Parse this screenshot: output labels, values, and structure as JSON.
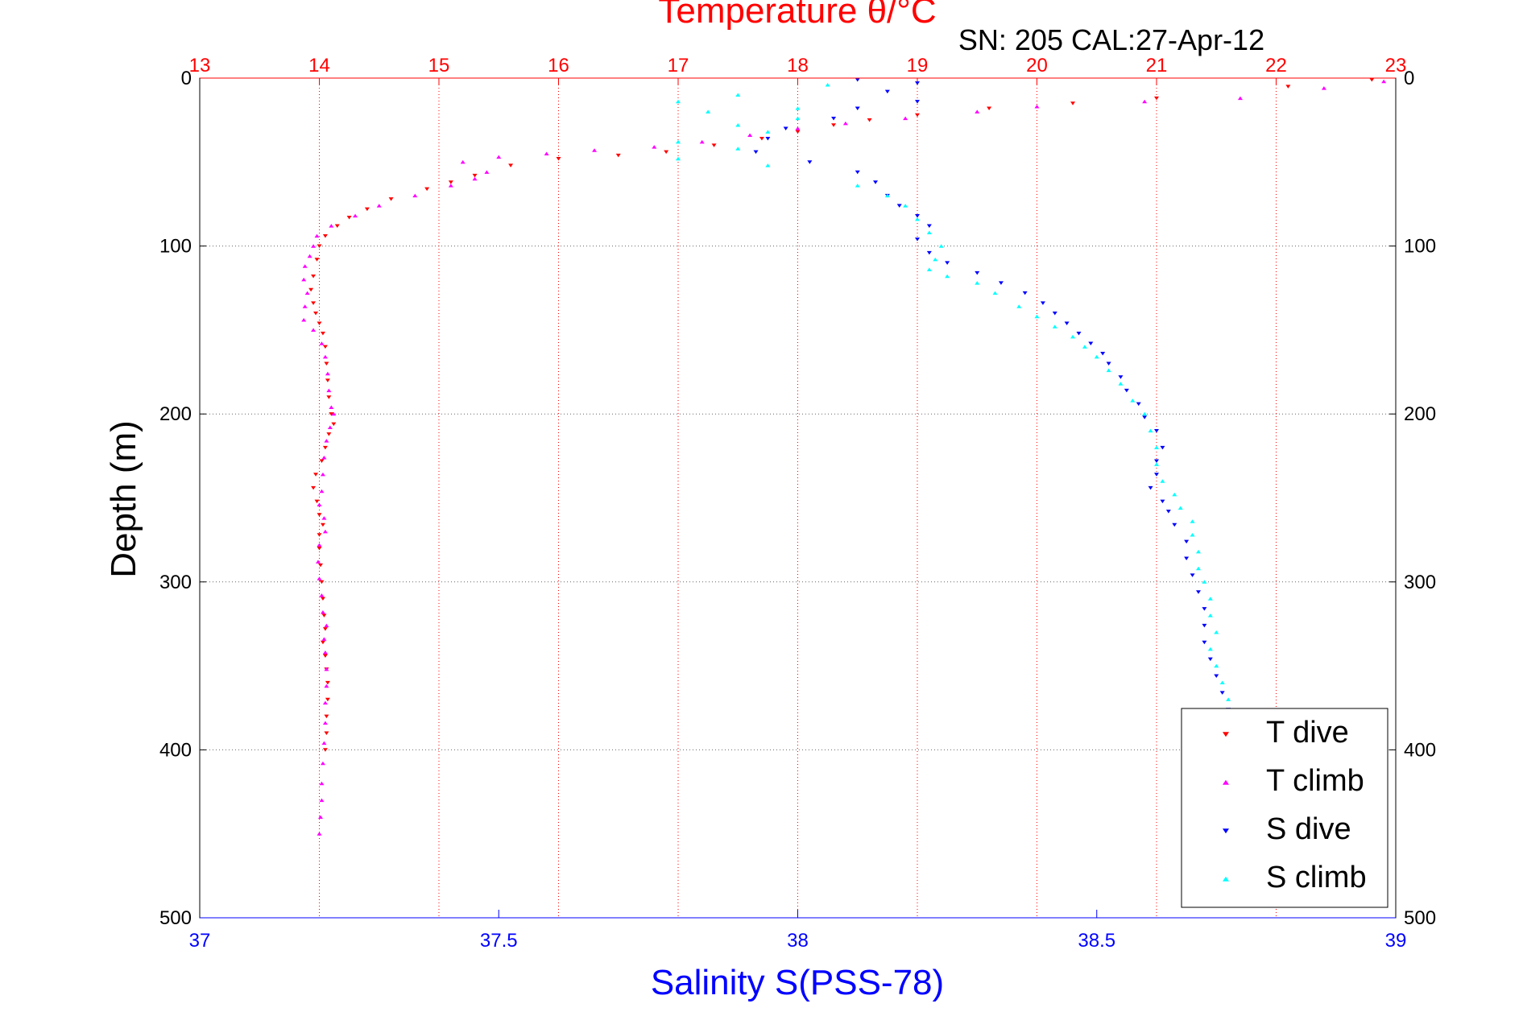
{
  "chart_data": {
    "type": "scatter",
    "title": "Temperature θ/°C",
    "subtitle": "SN: 205  CAL:27-Apr-12",
    "ylabel": "Depth (m)",
    "xlabel": "Salinity S(PSS-78)",
    "ylim": [
      0,
      500
    ],
    "y_reversed": true,
    "y_ticks": [
      0,
      100,
      200,
      300,
      400,
      500
    ],
    "x_top": {
      "label": "Temperature θ/°C",
      "lim": [
        13,
        23
      ],
      "ticks": [
        13,
        14,
        15,
        16,
        17,
        18,
        19,
        20,
        21,
        22,
        23
      ],
      "color": "#ff0000"
    },
    "x_bottom": {
      "label": "Salinity S(PSS-78)",
      "lim": [
        37,
        39
      ],
      "ticks": [
        "37",
        "37.5",
        "38",
        "38.5",
        "39"
      ],
      "color": "#0000ff"
    },
    "grid": true,
    "legend": "bottom-right",
    "series": [
      {
        "name": "T dive",
        "axis": "top",
        "marker": "triangle-down",
        "color": "#ff0000",
        "points": [
          [
            22.8,
            1
          ],
          [
            22.1,
            5
          ],
          [
            21.0,
            12
          ],
          [
            20.3,
            15
          ],
          [
            19.6,
            18
          ],
          [
            19.0,
            22
          ],
          [
            18.6,
            25
          ],
          [
            18.3,
            28
          ],
          [
            18.0,
            32
          ],
          [
            17.7,
            36
          ],
          [
            17.3,
            40
          ],
          [
            16.9,
            44
          ],
          [
            16.5,
            46
          ],
          [
            16.0,
            48
          ],
          [
            15.6,
            52
          ],
          [
            15.3,
            58
          ],
          [
            15.1,
            62
          ],
          [
            14.9,
            66
          ],
          [
            14.6,
            72
          ],
          [
            14.4,
            78
          ],
          [
            14.25,
            83
          ],
          [
            14.15,
            88
          ],
          [
            14.05,
            94
          ],
          [
            14.0,
            100
          ],
          [
            13.98,
            108
          ],
          [
            13.95,
            118
          ],
          [
            13.93,
            126
          ],
          [
            13.95,
            134
          ],
          [
            13.97,
            140
          ],
          [
            14.0,
            146
          ],
          [
            14.03,
            152
          ],
          [
            14.05,
            160
          ],
          [
            14.06,
            170
          ],
          [
            14.07,
            180
          ],
          [
            14.08,
            190
          ],
          [
            14.1,
            200
          ],
          [
            14.12,
            206
          ],
          [
            14.08,
            212
          ],
          [
            14.05,
            220
          ],
          [
            14.02,
            228
          ],
          [
            13.97,
            236
          ],
          [
            13.95,
            244
          ],
          [
            13.98,
            252
          ],
          [
            14.0,
            260
          ],
          [
            14.03,
            266
          ],
          [
            14.0,
            272
          ],
          [
            14.0,
            280
          ],
          [
            14.01,
            290
          ],
          [
            14.02,
            300
          ],
          [
            14.03,
            310
          ],
          [
            14.04,
            320
          ],
          [
            14.05,
            328
          ],
          [
            14.03,
            336
          ],
          [
            14.05,
            344
          ],
          [
            14.06,
            352
          ],
          [
            14.07,
            360
          ],
          [
            14.07,
            370
          ],
          [
            14.06,
            380
          ],
          [
            14.06,
            390
          ],
          [
            14.05,
            400
          ]
        ]
      },
      {
        "name": "T climb",
        "axis": "top",
        "marker": "triangle-up",
        "color": "#ff00ff",
        "points": [
          [
            22.9,
            2
          ],
          [
            22.4,
            6
          ],
          [
            21.7,
            12
          ],
          [
            20.9,
            14
          ],
          [
            20.0,
            17
          ],
          [
            19.5,
            20
          ],
          [
            18.9,
            24
          ],
          [
            18.4,
            27
          ],
          [
            18.0,
            30
          ],
          [
            17.6,
            34
          ],
          [
            17.2,
            38
          ],
          [
            16.8,
            41
          ],
          [
            16.3,
            43
          ],
          [
            15.9,
            45
          ],
          [
            15.5,
            47
          ],
          [
            15.2,
            50
          ],
          [
            15.4,
            56
          ],
          [
            15.3,
            60
          ],
          [
            15.1,
            64
          ],
          [
            14.8,
            70
          ],
          [
            14.5,
            76
          ],
          [
            14.3,
            82
          ],
          [
            14.1,
            88
          ],
          [
            13.98,
            94
          ],
          [
            13.95,
            100
          ],
          [
            13.92,
            106
          ],
          [
            13.88,
            112
          ],
          [
            13.87,
            120
          ],
          [
            13.9,
            128
          ],
          [
            13.88,
            136
          ],
          [
            13.87,
            144
          ],
          [
            13.95,
            150
          ],
          [
            14.02,
            158
          ],
          [
            14.05,
            166
          ],
          [
            14.07,
            176
          ],
          [
            14.08,
            186
          ],
          [
            14.1,
            196
          ],
          [
            14.12,
            200
          ],
          [
            14.09,
            208
          ],
          [
            14.06,
            216
          ],
          [
            14.04,
            226
          ],
          [
            14.03,
            236
          ],
          [
            14.02,
            246
          ],
          [
            14.0,
            254
          ],
          [
            14.04,
            262
          ],
          [
            14.05,
            270
          ],
          [
            14.0,
            278
          ],
          [
            13.99,
            288
          ],
          [
            14.0,
            298
          ],
          [
            14.02,
            308
          ],
          [
            14.03,
            318
          ],
          [
            14.06,
            326
          ],
          [
            14.04,
            334
          ],
          [
            14.05,
            342
          ],
          [
            14.06,
            352
          ],
          [
            14.06,
            362
          ],
          [
            14.05,
            372
          ],
          [
            14.05,
            384
          ],
          [
            14.04,
            396
          ],
          [
            14.03,
            408
          ],
          [
            14.02,
            420
          ],
          [
            14.02,
            430
          ],
          [
            14.01,
            440
          ],
          [
            14.0,
            450
          ]
        ]
      },
      {
        "name": "S dive",
        "axis": "bottom",
        "marker": "triangle-down",
        "color": "#0000ff",
        "points": [
          [
            38.1,
            1
          ],
          [
            38.2,
            3
          ],
          [
            38.15,
            8
          ],
          [
            38.2,
            14
          ],
          [
            38.1,
            18
          ],
          [
            38.06,
            24
          ],
          [
            37.98,
            30
          ],
          [
            37.95,
            36
          ],
          [
            37.93,
            44
          ],
          [
            38.02,
            50
          ],
          [
            38.1,
            56
          ],
          [
            38.13,
            62
          ],
          [
            38.15,
            70
          ],
          [
            38.17,
            76
          ],
          [
            38.2,
            82
          ],
          [
            38.22,
            88
          ],
          [
            38.2,
            96
          ],
          [
            38.22,
            104
          ],
          [
            38.25,
            110
          ],
          [
            38.3,
            116
          ],
          [
            38.34,
            122
          ],
          [
            38.38,
            128
          ],
          [
            38.41,
            134
          ],
          [
            38.43,
            140
          ],
          [
            38.45,
            146
          ],
          [
            38.47,
            152
          ],
          [
            38.49,
            158
          ],
          [
            38.51,
            164
          ],
          [
            38.52,
            170
          ],
          [
            38.54,
            178
          ],
          [
            38.55,
            186
          ],
          [
            38.57,
            194
          ],
          [
            38.58,
            202
          ],
          [
            38.6,
            210
          ],
          [
            38.61,
            220
          ],
          [
            38.6,
            228
          ],
          [
            38.6,
            236
          ],
          [
            38.59,
            244
          ],
          [
            38.61,
            252
          ],
          [
            38.62,
            258
          ],
          [
            38.63,
            266
          ],
          [
            38.65,
            276
          ],
          [
            38.65,
            286
          ],
          [
            38.66,
            296
          ],
          [
            38.67,
            306
          ],
          [
            38.68,
            316
          ],
          [
            38.68,
            326
          ],
          [
            38.68,
            336
          ],
          [
            38.69,
            346
          ],
          [
            38.7,
            356
          ],
          [
            38.71,
            366
          ],
          [
            38.72,
            376
          ]
        ]
      },
      {
        "name": "S climb",
        "axis": "bottom",
        "marker": "triangle-up",
        "color": "#00ffff",
        "points": [
          [
            38.05,
            4
          ],
          [
            37.9,
            10
          ],
          [
            37.8,
            14
          ],
          [
            38.0,
            18
          ],
          [
            37.85,
            20
          ],
          [
            38.0,
            24
          ],
          [
            37.9,
            28
          ],
          [
            37.95,
            32
          ],
          [
            37.8,
            38
          ],
          [
            37.9,
            42
          ],
          [
            37.8,
            48
          ],
          [
            37.95,
            52
          ],
          [
            38.1,
            64
          ],
          [
            38.15,
            70
          ],
          [
            38.18,
            76
          ],
          [
            38.2,
            84
          ],
          [
            38.22,
            92
          ],
          [
            38.24,
            100
          ],
          [
            38.23,
            108
          ],
          [
            38.22,
            114
          ],
          [
            38.25,
            118
          ],
          [
            38.3,
            122
          ],
          [
            38.33,
            128
          ],
          [
            38.37,
            136
          ],
          [
            38.4,
            142
          ],
          [
            38.43,
            148
          ],
          [
            38.46,
            154
          ],
          [
            38.48,
            160
          ],
          [
            38.5,
            166
          ],
          [
            38.52,
            174
          ],
          [
            38.54,
            182
          ],
          [
            38.56,
            192
          ],
          [
            38.58,
            200
          ],
          [
            38.59,
            210
          ],
          [
            38.6,
            220
          ],
          [
            38.6,
            230
          ],
          [
            38.61,
            240
          ],
          [
            38.63,
            248
          ],
          [
            38.64,
            256
          ],
          [
            38.66,
            264
          ],
          [
            38.66,
            272
          ],
          [
            38.67,
            282
          ],
          [
            38.67,
            292
          ],
          [
            38.68,
            300
          ],
          [
            38.69,
            310
          ],
          [
            38.69,
            320
          ],
          [
            38.7,
            330
          ],
          [
            38.69,
            340
          ],
          [
            38.7,
            350
          ],
          [
            38.71,
            360
          ],
          [
            38.72,
            370
          ],
          [
            38.72,
            380
          ]
        ]
      }
    ]
  }
}
